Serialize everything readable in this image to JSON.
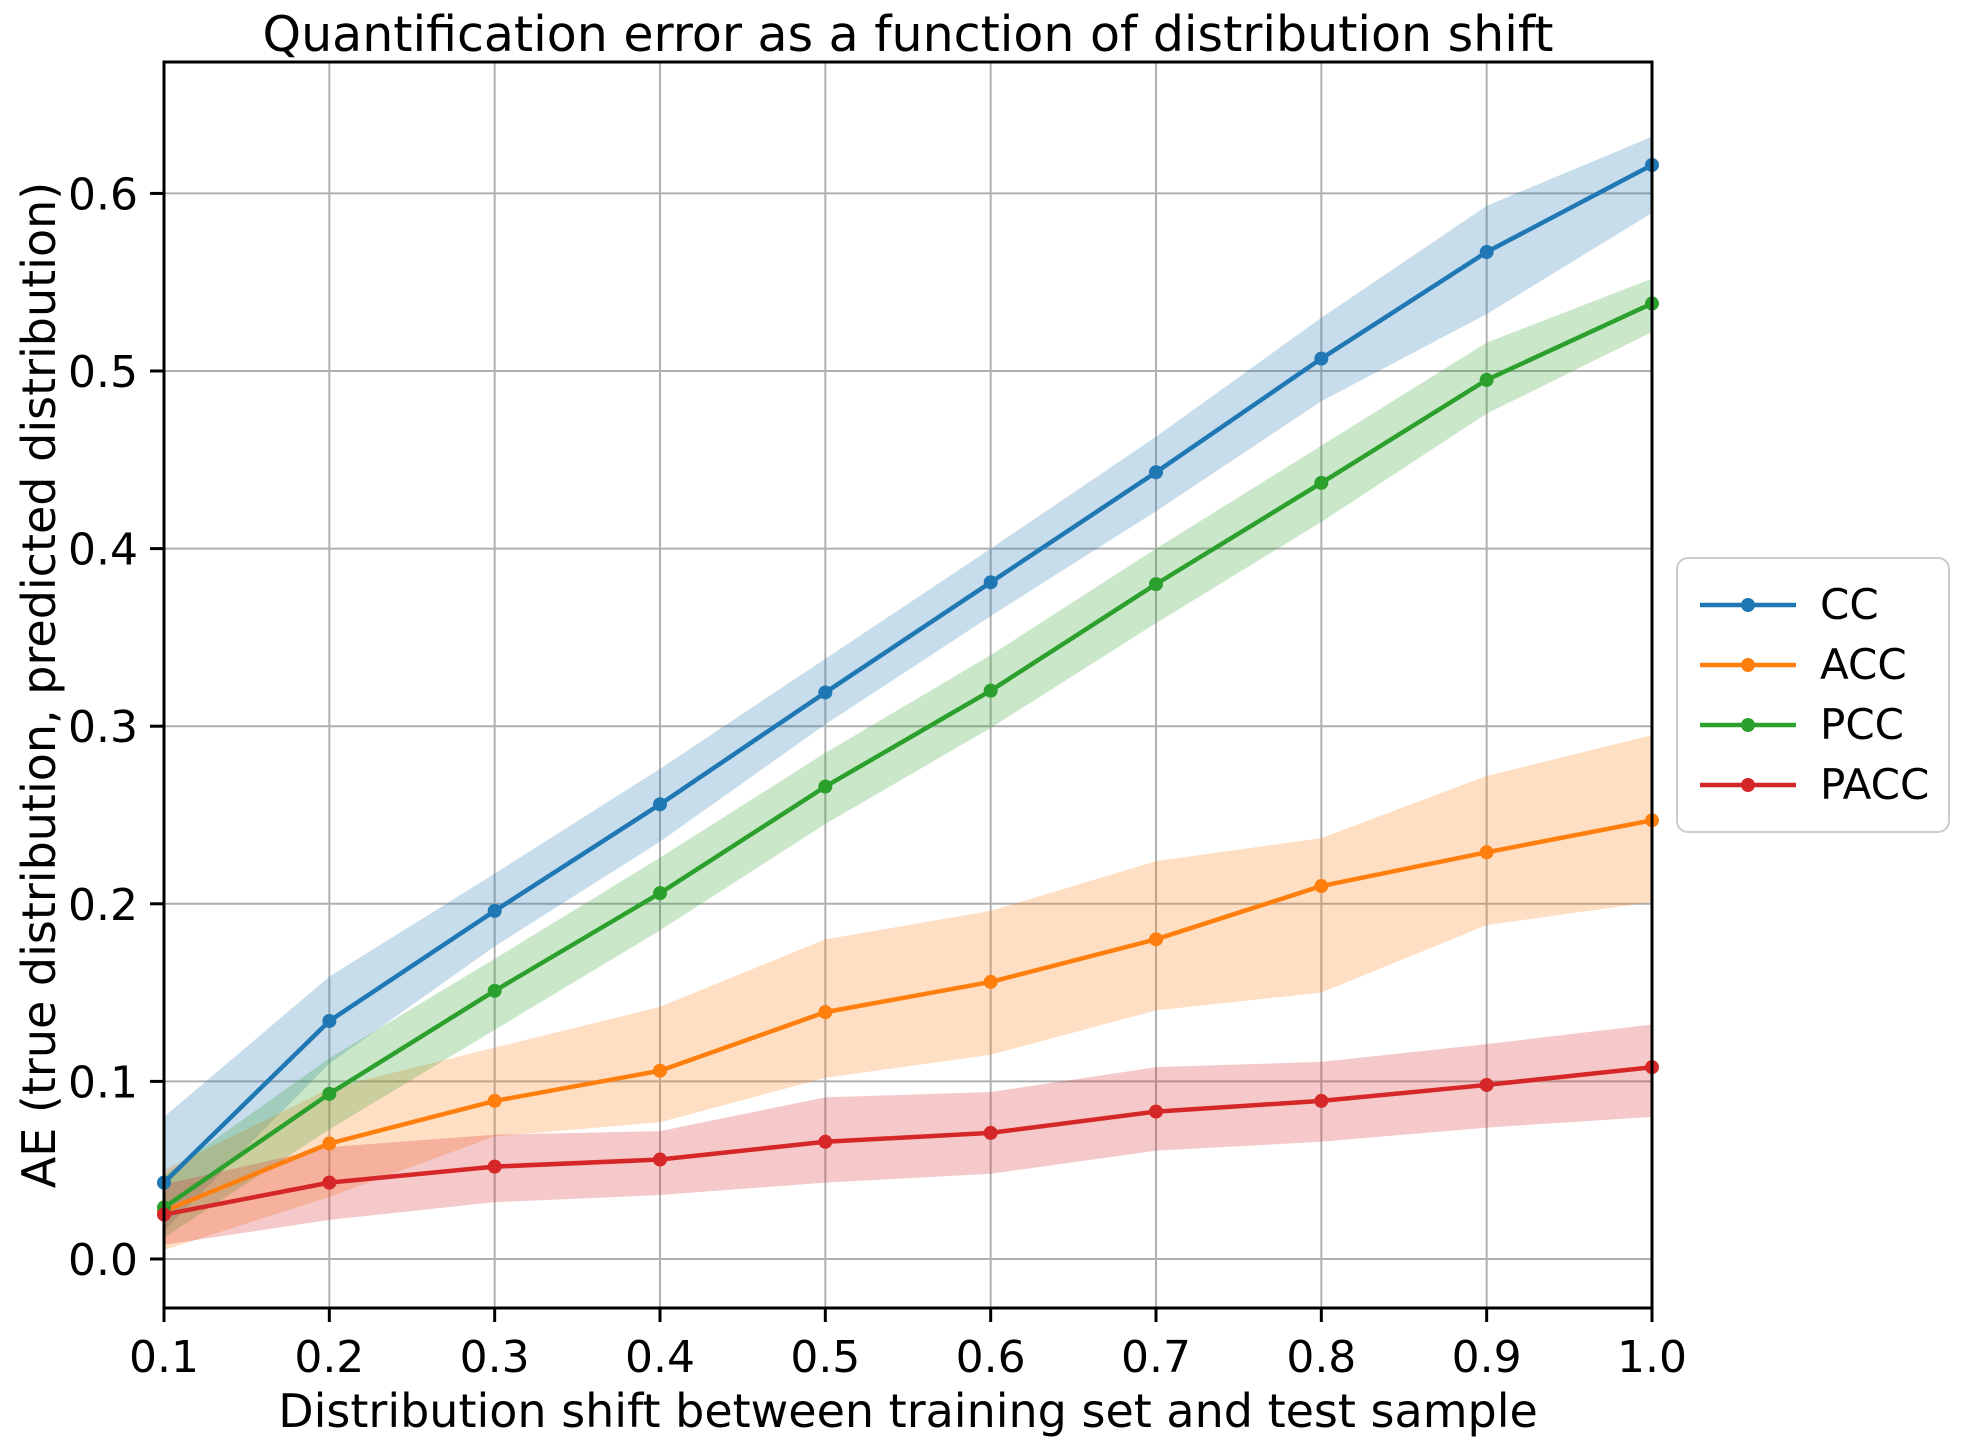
{
  "chart_data": {
    "type": "line",
    "title": "Quantification error as a function of distribution shift",
    "xlabel": "Distribution shift between training set and test sample",
    "ylabel": "AE (true distribution, predicted distribution)",
    "x": [
      0.1,
      0.2,
      0.3,
      0.4,
      0.5,
      0.6,
      0.7,
      0.8,
      0.9,
      1.0
    ],
    "x_tick_labels": [
      "0.1",
      "0.2",
      "0.3",
      "0.4",
      "0.5",
      "0.6",
      "0.7",
      "0.8",
      "0.9",
      "1.0"
    ],
    "y_tick_labels": [
      "0.0",
      "0.1",
      "0.2",
      "0.3",
      "0.4",
      "0.5",
      "0.6"
    ],
    "y_tick_values": [
      0.0,
      0.1,
      0.2,
      0.3,
      0.4,
      0.5,
      0.6
    ],
    "xlim": [
      0.1,
      1.0
    ],
    "ylim": [
      -0.0276,
      0.674
    ],
    "grid": true,
    "grid_color": "#b0b0b0",
    "legend_position": "center-right-outside",
    "band_opacity": 0.25,
    "series": [
      {
        "name": "CC",
        "color": "#1f77b4",
        "values": [
          0.043,
          0.134,
          0.196,
          0.256,
          0.319,
          0.381,
          0.443,
          0.507,
          0.567,
          0.616
        ],
        "band_lower": [
          0.016,
          0.11,
          0.176,
          0.235,
          0.301,
          0.362,
          0.421,
          0.483,
          0.532,
          0.589
        ],
        "band_upper": [
          0.08,
          0.159,
          0.217,
          0.276,
          0.338,
          0.4,
          0.463,
          0.53,
          0.593,
          0.632
        ]
      },
      {
        "name": "ACC",
        "color": "#ff7f0e",
        "values": [
          0.027,
          0.065,
          0.089,
          0.106,
          0.139,
          0.156,
          0.18,
          0.21,
          0.229,
          0.247
        ],
        "band_lower": [
          0.005,
          0.035,
          0.069,
          0.077,
          0.102,
          0.115,
          0.14,
          0.15,
          0.188,
          0.201
        ],
        "band_upper": [
          0.05,
          0.096,
          0.119,
          0.142,
          0.18,
          0.196,
          0.224,
          0.237,
          0.272,
          0.295
        ]
      },
      {
        "name": "PCC",
        "color": "#2ca02c",
        "values": [
          0.029,
          0.093,
          0.151,
          0.206,
          0.266,
          0.32,
          0.38,
          0.437,
          0.495,
          0.538
        ],
        "band_lower": [
          0.012,
          0.073,
          0.129,
          0.185,
          0.245,
          0.299,
          0.358,
          0.415,
          0.476,
          0.522
        ],
        "band_upper": [
          0.047,
          0.113,
          0.169,
          0.226,
          0.285,
          0.34,
          0.4,
          0.458,
          0.516,
          0.552
        ]
      },
      {
        "name": "PACC",
        "color": "#d62728",
        "values": [
          0.025,
          0.043,
          0.052,
          0.056,
          0.066,
          0.071,
          0.083,
          0.089,
          0.098,
          0.108
        ],
        "band_lower": [
          0.008,
          0.022,
          0.032,
          0.036,
          0.043,
          0.048,
          0.061,
          0.066,
          0.074,
          0.08
        ],
        "band_upper": [
          0.042,
          0.063,
          0.07,
          0.072,
          0.091,
          0.094,
          0.108,
          0.111,
          0.121,
          0.132
        ]
      }
    ]
  }
}
